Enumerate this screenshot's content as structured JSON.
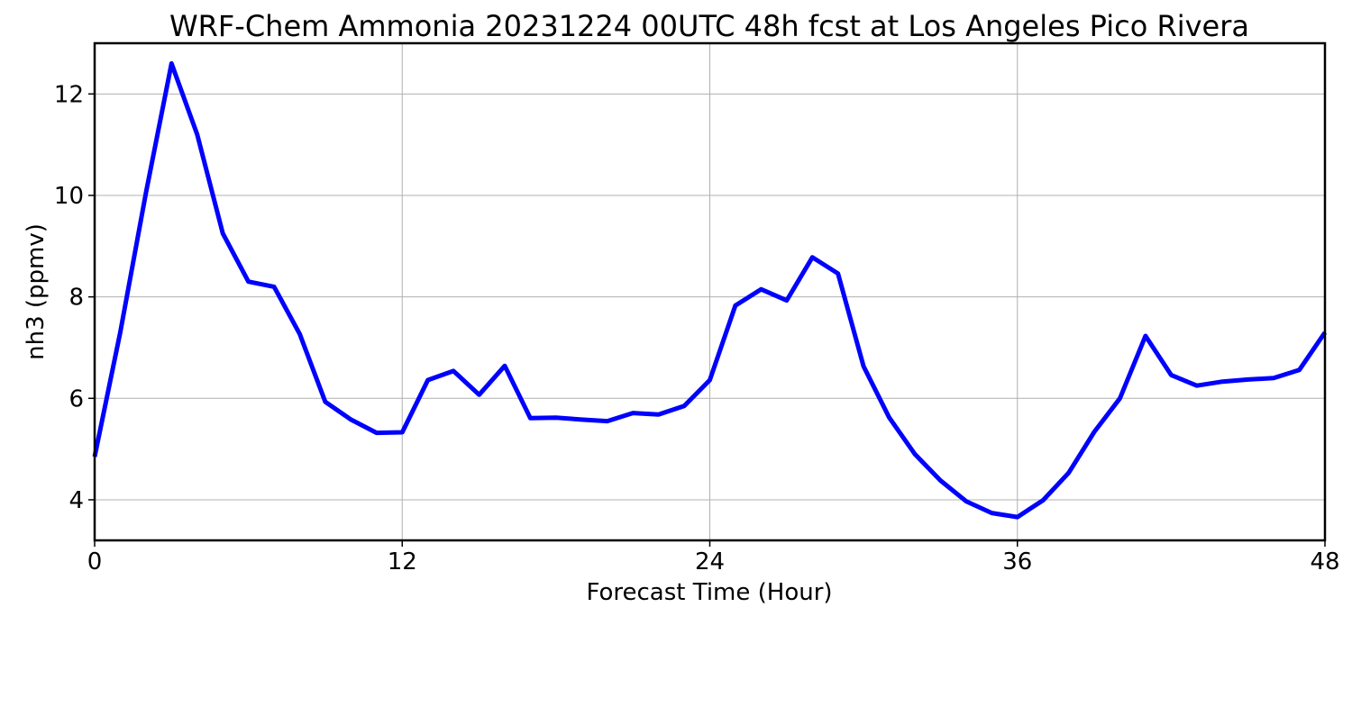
{
  "chart_data": {
    "type": "line",
    "title": "WRF-Chem Ammonia  20231224 00UTC 48h fcst at Los Angeles Pico Rivera",
    "xlabel": "Forecast Time (Hour)",
    "ylabel": "nh3  (ppmv)",
    "xlim": [
      0,
      48
    ],
    "ylim": [
      3.2,
      13.0
    ],
    "xticks": [
      0,
      12,
      24,
      36,
      48
    ],
    "yticks": [
      4,
      6,
      8,
      10,
      12
    ],
    "grid": true,
    "series": [
      {
        "color": "#0000ff",
        "x": [
          0,
          1,
          2,
          3,
          4,
          5,
          6,
          7,
          8,
          9,
          10,
          11,
          12,
          13,
          14,
          15,
          16,
          17,
          18,
          19,
          20,
          21,
          22,
          23,
          24,
          25,
          26,
          27,
          28,
          29,
          30,
          31,
          32,
          33,
          34,
          35,
          36,
          37,
          38,
          39,
          40,
          41,
          42,
          43,
          44,
          45,
          46,
          47,
          48
        ],
        "y": [
          4.85,
          7.3,
          10.05,
          12.6,
          11.2,
          9.25,
          8.3,
          8.2,
          7.27,
          5.93,
          5.58,
          5.32,
          5.33,
          6.36,
          6.54,
          6.07,
          6.64,
          5.61,
          5.62,
          5.58,
          5.55,
          5.71,
          5.68,
          5.85,
          6.36,
          7.83,
          8.15,
          7.93,
          8.78,
          8.46,
          6.63,
          5.62,
          4.9,
          4.38,
          3.97,
          3.74,
          3.66,
          3.99,
          4.53,
          5.34,
          6.0,
          7.23,
          6.46,
          6.25,
          6.33,
          6.37,
          6.4,
          6.56,
          7.3
        ]
      }
    ]
  }
}
